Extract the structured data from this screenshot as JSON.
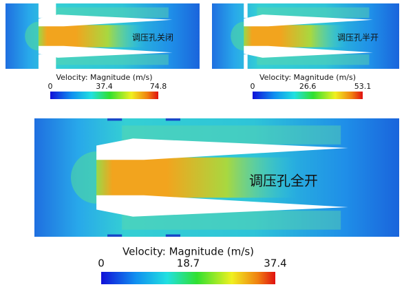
{
  "panels": [
    {
      "label": "调压孔关闭",
      "colorbar": {
        "title": "Velocity: Magnitude (m/s)",
        "ticks": [
          0,
          37.4,
          74.8
        ]
      }
    },
    {
      "label": "调压孔半开",
      "colorbar": {
        "title": "Velocity: Magnitude (m/s)",
        "ticks": [
          0,
          26.6,
          53.1
        ]
      }
    },
    {
      "label": "调压孔全开",
      "colorbar": {
        "title": "Velocity: Magnitude (m/s)",
        "ticks": [
          0,
          18.7,
          37.4
        ]
      }
    }
  ]
}
